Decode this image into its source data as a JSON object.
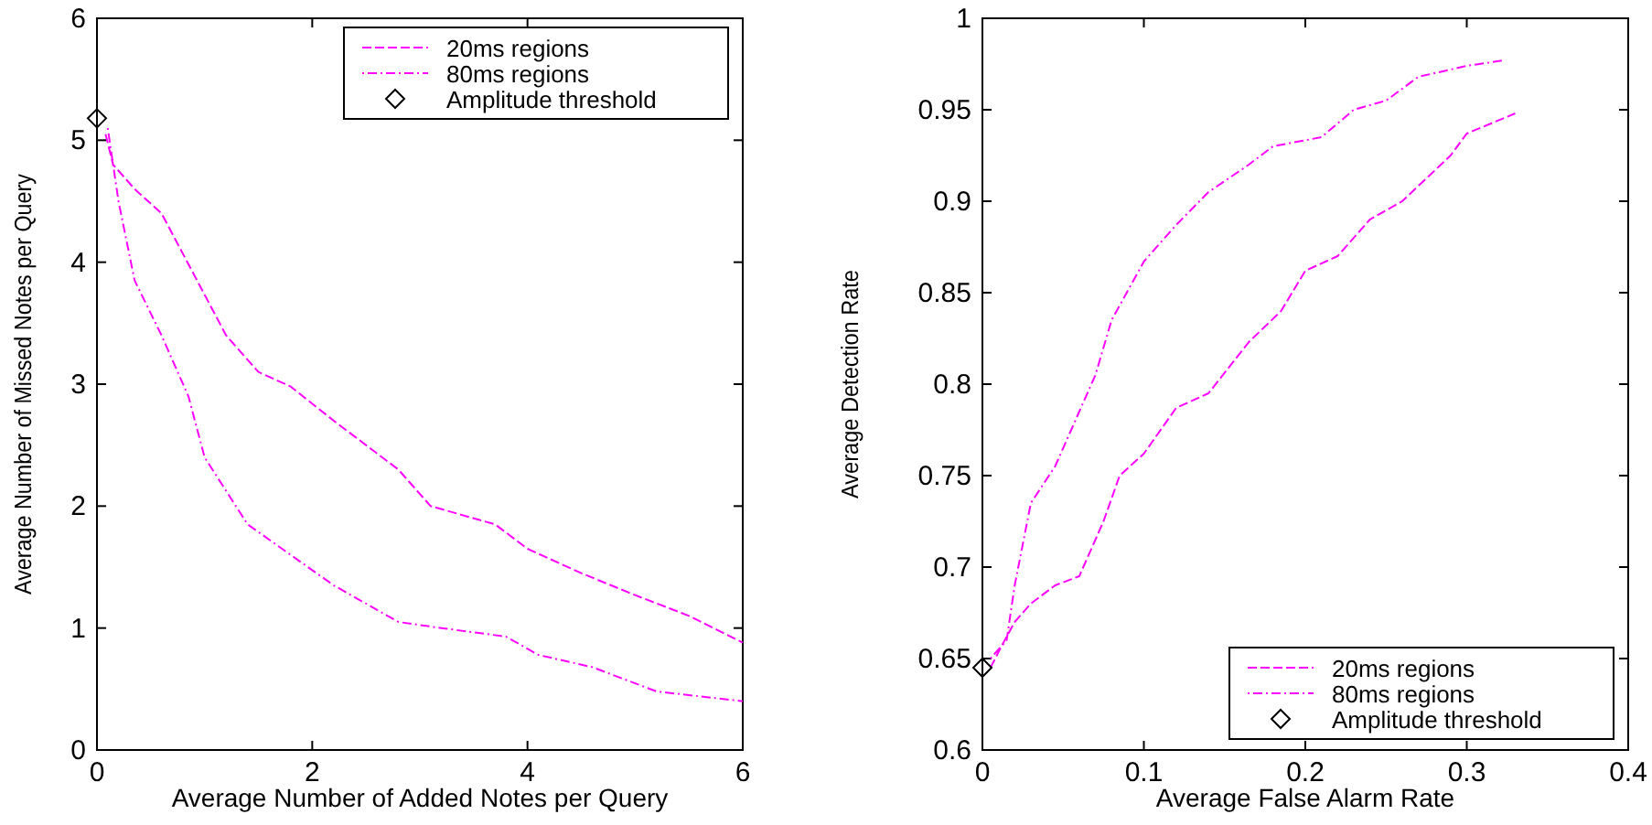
{
  "chart_data": [
    {
      "type": "line",
      "xlabel": "Average Number of Added Notes per Query",
      "ylabel": "Average Number of Missed Notes per Query",
      "xlim": [
        0,
        6
      ],
      "ylim": [
        0,
        6
      ],
      "xticks": [
        0,
        2,
        4,
        6
      ],
      "yticks": [
        0,
        1,
        2,
        3,
        4,
        5,
        6
      ],
      "grid": false,
      "legend": "top right",
      "series": [
        {
          "name": "20ms regions",
          "color": "#ff00ff",
          "line_style": "dashed",
          "x": [
            0.08,
            0.15,
            0.35,
            0.6,
            0.9,
            1.2,
            1.5,
            1.8,
            2.2,
            2.8,
            3.1,
            3.7,
            4.0,
            4.5,
            5.0,
            5.5,
            6.0
          ],
          "values": [
            5.05,
            4.8,
            4.6,
            4.4,
            3.9,
            3.4,
            3.1,
            2.98,
            2.7,
            2.3,
            2.0,
            1.85,
            1.65,
            1.45,
            1.27,
            1.1,
            0.88
          ]
        },
        {
          "name": "80ms regions",
          "color": "#ff00ff",
          "line_style": "dotted",
          "x": [
            0.1,
            0.2,
            0.35,
            0.6,
            0.85,
            1.0,
            1.4,
            1.8,
            2.2,
            2.8,
            3.2,
            3.8,
            4.1,
            4.6,
            5.2,
            6.0
          ],
          "values": [
            5.1,
            4.5,
            3.85,
            3.4,
            2.9,
            2.4,
            1.85,
            1.6,
            1.35,
            1.05,
            1.0,
            0.93,
            0.78,
            0.68,
            0.48,
            0.4
          ]
        },
        {
          "name": "Amplitude threshold",
          "type": "scatter",
          "color": "#000000",
          "marker": "diamond",
          "x": [
            0
          ],
          "values": [
            5.18
          ]
        }
      ]
    },
    {
      "type": "line",
      "xlabel": "Average False Alarm Rate",
      "ylabel": "Average Detection Rate",
      "xlim": [
        0,
        0.4
      ],
      "ylim": [
        0.6,
        1
      ],
      "xticks": [
        0,
        0.1,
        0.2,
        0.3,
        0.4
      ],
      "yticks": [
        0.6,
        0.65,
        0.7,
        0.75,
        0.8,
        0.85,
        0.9,
        0.95,
        1
      ],
      "grid": false,
      "legend": "bottom right",
      "series": [
        {
          "name": "20ms regions",
          "color": "#ff00ff",
          "line_style": "dashed",
          "x": [
            0.005,
            0.012,
            0.02,
            0.03,
            0.045,
            0.06,
            0.075,
            0.085,
            0.1,
            0.12,
            0.14,
            0.165,
            0.185,
            0.2,
            0.22,
            0.24,
            0.26,
            0.29,
            0.3,
            0.33
          ],
          "values": [
            0.645,
            0.657,
            0.67,
            0.68,
            0.69,
            0.695,
            0.725,
            0.75,
            0.762,
            0.787,
            0.795,
            0.823,
            0.84,
            0.862,
            0.87,
            0.89,
            0.9,
            0.925,
            0.937,
            0.948
          ]
        },
        {
          "name": "80ms regions",
          "color": "#ff00ff",
          "line_style": "dotted",
          "x": [
            0.005,
            0.015,
            0.02,
            0.03,
            0.045,
            0.055,
            0.07,
            0.08,
            0.1,
            0.12,
            0.14,
            0.165,
            0.18,
            0.21,
            0.23,
            0.25,
            0.27,
            0.3,
            0.323
          ],
          "values": [
            0.65,
            0.66,
            0.69,
            0.735,
            0.755,
            0.775,
            0.805,
            0.835,
            0.867,
            0.887,
            0.905,
            0.92,
            0.93,
            0.935,
            0.95,
            0.955,
            0.968,
            0.974,
            0.977
          ]
        },
        {
          "name": "Amplitude threshold",
          "type": "scatter",
          "color": "#000000",
          "marker": "diamond",
          "x": [
            0
          ],
          "values": [
            0.645
          ]
        }
      ]
    }
  ]
}
